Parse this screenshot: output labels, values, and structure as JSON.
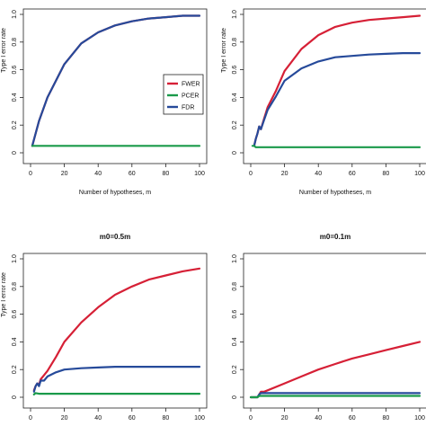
{
  "colors": {
    "FWER": "#d62036",
    "PCER": "#1a9a4a",
    "FDR": "#264a9a"
  },
  "chart_data": [
    {
      "type": "line",
      "title": "",
      "xlabel": "Number of hypotheses, m",
      "ylabel": "Type I error rate",
      "xlim": [
        0,
        100
      ],
      "ylim": [
        0,
        1
      ],
      "xticks": [
        "0",
        "20",
        "40",
        "60",
        "80",
        "100"
      ],
      "yticks": [
        "0",
        "0.2",
        "0.4",
        "0.6",
        "0.8",
        "1.0"
      ],
      "legend": {
        "position": "center-right",
        "entries": [
          "FWER",
          "PCER",
          "FDR"
        ]
      },
      "series": [
        {
          "name": "FWER",
          "color": "#d62036",
          "x": [
            1,
            5,
            10,
            20,
            30,
            40,
            50,
            60,
            70,
            80,
            90,
            100
          ],
          "y": [
            0.05,
            0.23,
            0.4,
            0.64,
            0.79,
            0.87,
            0.92,
            0.95,
            0.97,
            0.98,
            0.99,
            0.99
          ]
        },
        {
          "name": "PCER",
          "color": "#1a9a4a",
          "x": [
            1,
            100
          ],
          "y": [
            0.05,
            0.05
          ]
        },
        {
          "name": "FDR",
          "color": "#264a9a",
          "x": [
            1,
            5,
            10,
            20,
            30,
            40,
            50,
            60,
            70,
            80,
            90,
            100
          ],
          "y": [
            0.05,
            0.23,
            0.4,
            0.64,
            0.79,
            0.87,
            0.92,
            0.95,
            0.97,
            0.98,
            0.99,
            0.99
          ]
        }
      ]
    },
    {
      "type": "line",
      "title": "",
      "xlabel": "Number of hypotheses, m",
      "ylabel": "Type I error rate",
      "xlim": [
        0,
        100
      ],
      "ylim": [
        0,
        1
      ],
      "xticks": [
        "0",
        "20",
        "40",
        "60",
        "80",
        "100"
      ],
      "yticks": [
        "0",
        "0.2",
        "0.4",
        "0.6",
        "0.8",
        "1.0"
      ],
      "series": [
        {
          "name": "FWER",
          "color": "#d62036",
          "x": [
            2,
            3,
            4,
            5,
            6,
            8,
            10,
            15,
            20,
            30,
            40,
            50,
            60,
            70,
            80,
            90,
            100
          ],
          "y": [
            0.05,
            0.1,
            0.14,
            0.19,
            0.17,
            0.25,
            0.33,
            0.45,
            0.59,
            0.75,
            0.85,
            0.91,
            0.94,
            0.96,
            0.97,
            0.98,
            0.99
          ]
        },
        {
          "name": "PCER",
          "color": "#1a9a4a",
          "x": [
            1,
            2,
            3,
            5,
            10,
            100
          ],
          "y": [
            0.05,
            0.05,
            0.04,
            0.04,
            0.04,
            0.04
          ]
        },
        {
          "name": "FDR",
          "color": "#264a9a",
          "x": [
            2,
            3,
            4,
            5,
            6,
            8,
            10,
            15,
            20,
            30,
            40,
            50,
            60,
            70,
            80,
            90,
            100
          ],
          "y": [
            0.05,
            0.1,
            0.14,
            0.19,
            0.17,
            0.24,
            0.31,
            0.41,
            0.52,
            0.61,
            0.66,
            0.69,
            0.7,
            0.71,
            0.715,
            0.72,
            0.72
          ]
        }
      ]
    },
    {
      "type": "line",
      "title": "m0=0.5m",
      "xlabel": "",
      "ylabel": "Type I error rate",
      "xlim": [
        0,
        100
      ],
      "ylim": [
        0,
        1
      ],
      "xticks": [
        "0",
        "20",
        "40",
        "60",
        "80",
        "100"
      ],
      "yticks": [
        "0",
        "0.2",
        "0.4",
        "0.6",
        "0.8",
        "1.0"
      ],
      "series": [
        {
          "name": "FWER",
          "color": "#d62036",
          "x": [
            2,
            3,
            4,
            5,
            6,
            8,
            10,
            15,
            20,
            30,
            40,
            50,
            60,
            70,
            80,
            90,
            100
          ],
          "y": [
            0.05,
            0.08,
            0.1,
            0.09,
            0.13,
            0.16,
            0.19,
            0.29,
            0.4,
            0.54,
            0.65,
            0.74,
            0.8,
            0.85,
            0.88,
            0.91,
            0.93
          ]
        },
        {
          "name": "PCER",
          "color": "#1a9a4a",
          "x": [
            2,
            3,
            5,
            10,
            20,
            100
          ],
          "y": [
            0.02,
            0.03,
            0.025,
            0.025,
            0.025,
            0.025
          ]
        },
        {
          "name": "FDR",
          "color": "#264a9a",
          "x": [
            2,
            3,
            4,
            5,
            6,
            8,
            10,
            15,
            20,
            30,
            40,
            50,
            60,
            70,
            80,
            90,
            100
          ],
          "y": [
            0.04,
            0.08,
            0.1,
            0.08,
            0.12,
            0.12,
            0.15,
            0.18,
            0.2,
            0.21,
            0.215,
            0.22,
            0.22,
            0.22,
            0.22,
            0.22,
            0.22
          ]
        }
      ]
    },
    {
      "type": "line",
      "title": "m0=0.1m",
      "xlabel": "",
      "ylabel": "",
      "xlim": [
        0,
        100
      ],
      "ylim": [
        0,
        1
      ],
      "xticks": [
        "0",
        "20",
        "40",
        "60",
        "80",
        "100"
      ],
      "yticks": [
        "0",
        "0.2",
        "0.4",
        "0.6",
        "0.8",
        "1.0"
      ],
      "series": [
        {
          "name": "FWER",
          "color": "#d62036",
          "x": [
            0,
            4,
            5,
            6,
            8,
            10,
            20,
            30,
            40,
            50,
            60,
            70,
            80,
            90,
            100
          ],
          "y": [
            0,
            0,
            0.02,
            0.04,
            0.04,
            0.05,
            0.1,
            0.15,
            0.2,
            0.24,
            0.28,
            0.31,
            0.34,
            0.37,
            0.4
          ]
        },
        {
          "name": "PCER",
          "color": "#1a9a4a",
          "x": [
            0,
            4,
            5,
            6,
            100
          ],
          "y": [
            0,
            0,
            0.01,
            0.01,
            0.01
          ]
        },
        {
          "name": "FDR",
          "color": "#264a9a",
          "x": [
            0,
            4,
            5,
            6,
            10,
            20,
            100
          ],
          "y": [
            0,
            0,
            0.02,
            0.03,
            0.03,
            0.03,
            0.03
          ]
        }
      ]
    }
  ]
}
